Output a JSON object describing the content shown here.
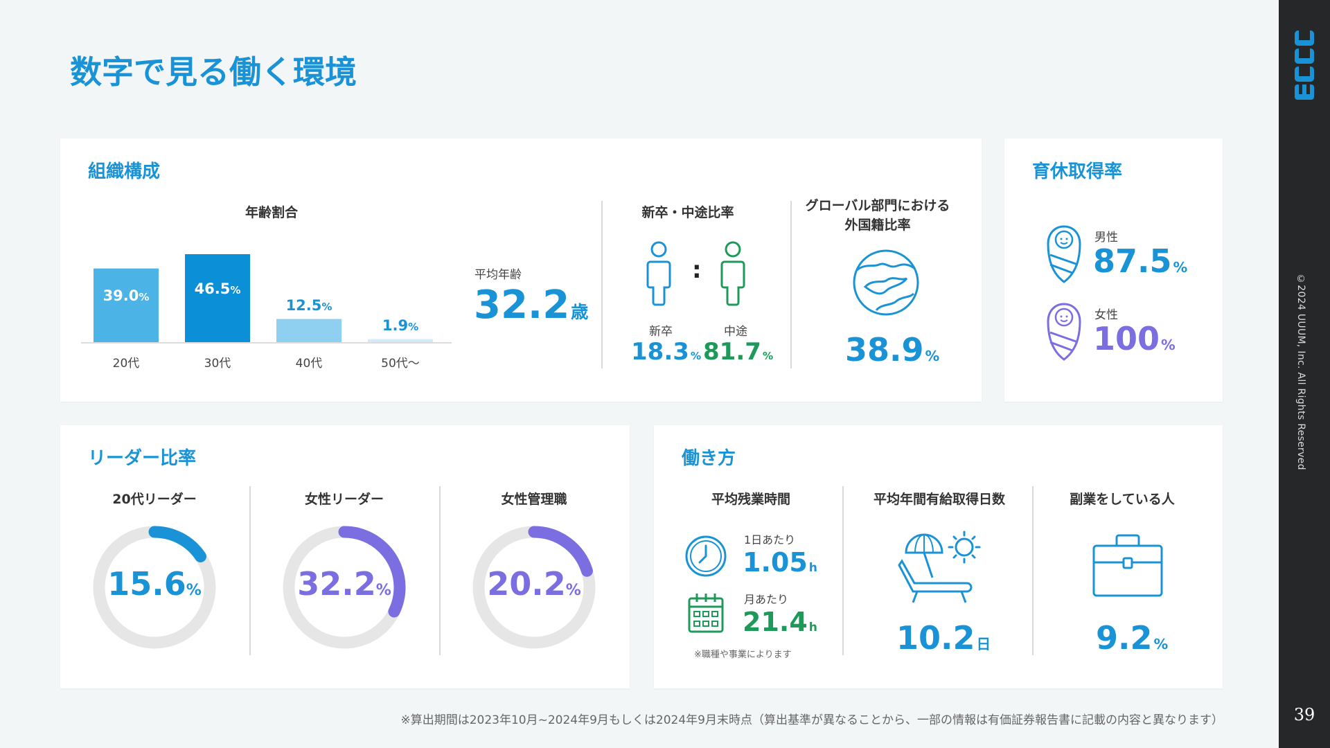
{
  "page": {
    "title": "数字で見る働く環境",
    "page_number": "39",
    "copyright": "©2024 UUUM, Inc. All Rights Reserved",
    "footnote": "※算出期間は2023年10月~2024年9月もしくは2024年9月末時点（算出基準が異なることから、一部の情報は有価証券報告書に記載の内容と異なります）"
  },
  "colors": {
    "accent_blue": "#1a93d6",
    "green": "#1d9a5a",
    "purple": "#7a6ee0",
    "sidebar": "#252729"
  },
  "organization": {
    "title": "組織構成",
    "age_ratio_title": "年齢割合",
    "avg_age_label": "平均年齢",
    "avg_age_value": "32.2",
    "avg_age_unit": "歳",
    "newgrad_title": "新卒・中途比率",
    "newgrad_label": "新卒",
    "newgrad_value": "18.3",
    "midcareer_label": "中途",
    "midcareer_value": "81.7",
    "colon": ":",
    "global_title_line1": "グローバル部門における",
    "global_title_line2": "外国籍比率",
    "global_value": "38.9",
    "percent": "%"
  },
  "chart_data": {
    "type": "bar",
    "title": "年齢割合",
    "categories": [
      "20代",
      "30代",
      "40代",
      "50代～"
    ],
    "values": [
      39.0,
      46.5,
      12.5,
      1.9
    ],
    "value_labels": [
      "39.0",
      "46.5",
      "12.5",
      "1.9"
    ],
    "unit": "%",
    "bar_colors": [
      "#4cb3e6",
      "#0b8fd6",
      "#8fd0f0",
      "#d2ebf7"
    ],
    "ylim": [
      0,
      46.5
    ],
    "grid": false
  },
  "childcare": {
    "title": "育休取得率",
    "male_label": "男性",
    "male_value": "87.5",
    "female_label": "女性",
    "female_value": "100",
    "percent": "%"
  },
  "leaders": {
    "title": "リーダー比率",
    "items": [
      {
        "label": "20代リーダー",
        "value": 15.6,
        "display": "15.6",
        "color": "#1a93d6"
      },
      {
        "label": "女性リーダー",
        "value": 32.2,
        "display": "32.2",
        "color": "#7a6ee0"
      },
      {
        "label": "女性管理職",
        "value": 20.2,
        "display": "20.2",
        "color": "#7a6ee0"
      }
    ],
    "percent": "%"
  },
  "workstyle": {
    "title": "働き方",
    "overtime_title": "平均残業時間",
    "per_day_label": "1日あたり",
    "per_day_value": "1.05",
    "per_month_label": "月あたり",
    "per_month_value": "21.4",
    "hour_unit": "h",
    "overtime_note": "※職種や事業によります",
    "leave_title": "平均年間有給取得日数",
    "leave_value": "10.2",
    "leave_unit": "日",
    "side_title": "副業をしている人",
    "side_value": "9.2",
    "percent": "%"
  }
}
